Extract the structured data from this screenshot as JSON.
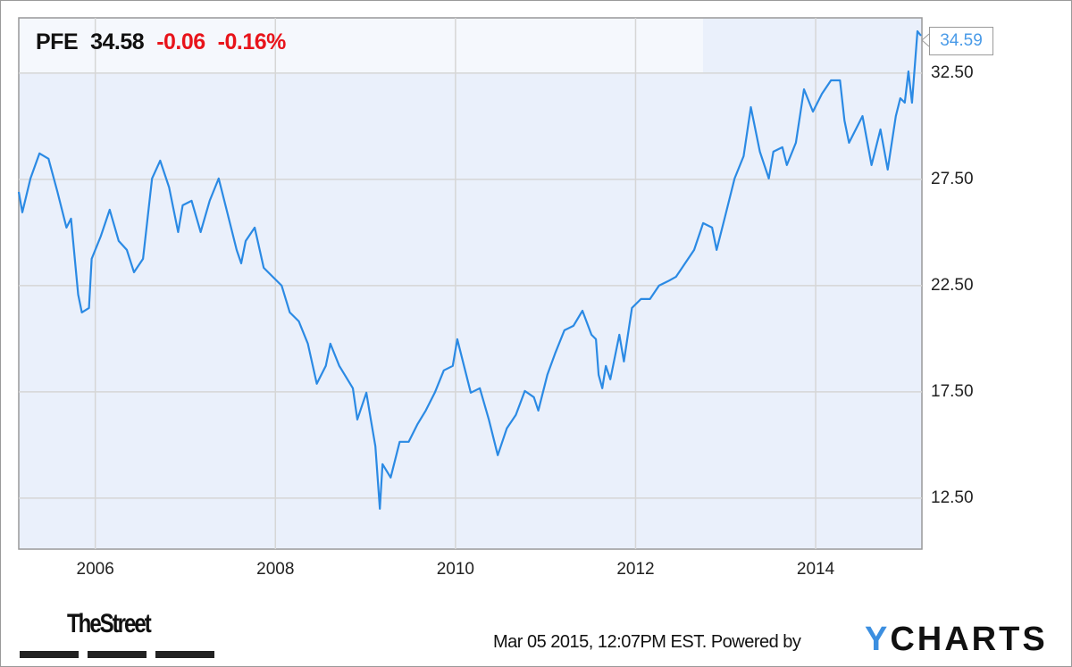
{
  "header": {
    "symbol": "PFE",
    "price": "34.58",
    "change": "-0.06",
    "change_pct": "-0.16%"
  },
  "last_value_label": "34.59",
  "footer": {
    "timestamp": "Mar 05 2015, 12:07PM EST.",
    "powered_by": "Powered by",
    "brand": "YCHARTS",
    "brand_first": "Y",
    "brand_rest": "CHARTS",
    "publisher_logo": "TheStreet"
  },
  "colors": {
    "line": "#2b8ae4",
    "plot_bg": "#eaf0fb",
    "negative": "#e8141b"
  },
  "chart_data": {
    "type": "line",
    "title": "",
    "xlabel": "",
    "ylabel": "",
    "xlim": [
      2005.15,
      2015.18
    ],
    "ylim": [
      10.1,
      35.1
    ],
    "y_axis_side": "right",
    "grid": true,
    "x_ticks": [
      {
        "value": 2006,
        "label": "2006"
      },
      {
        "value": 2008,
        "label": "2008"
      },
      {
        "value": 2010,
        "label": "2010"
      },
      {
        "value": 2012,
        "label": "2012"
      },
      {
        "value": 2014,
        "label": "2014"
      }
    ],
    "y_ticks": [
      {
        "value": 12.5,
        "label": "12.50"
      },
      {
        "value": 17.5,
        "label": "17.50"
      },
      {
        "value": 22.5,
        "label": "22.50"
      },
      {
        "value": 27.5,
        "label": "27.50"
      },
      {
        "value": 32.5,
        "label": "32.50"
      }
    ],
    "series": [
      {
        "x": [
          2005.15,
          2005.19,
          2005.28,
          2005.38,
          2005.48,
          2005.58,
          2005.68,
          2005.73,
          2005.81,
          2005.85,
          2005.93,
          2005.96,
          2006.06,
          2006.16,
          2006.26,
          2006.35,
          2006.43,
          2006.53,
          2006.63,
          2006.72,
          2006.82,
          2006.92,
          2006.97,
          2007.07,
          2007.17,
          2007.27,
          2007.37,
          2007.47,
          2007.57,
          2007.62,
          2007.67,
          2007.77,
          2007.87,
          2007.97,
          2008.07,
          2008.16,
          2008.26,
          2008.36,
          2008.46,
          2008.56,
          2008.61,
          2008.71,
          2008.86,
          2008.91,
          2009.01,
          2009.06,
          2009.11,
          2009.16,
          2009.19,
          2009.28,
          2009.38,
          2009.48,
          2009.58,
          2009.67,
          2009.77,
          2009.87,
          2009.97,
          2010.02,
          2010.07,
          2010.17,
          2010.27,
          2010.37,
          2010.47,
          2010.57,
          2010.67,
          2010.77,
          2010.87,
          2010.92,
          2011.02,
          2011.11,
          2011.21,
          2011.31,
          2011.41,
          2011.51,
          2011.56,
          2011.59,
          2011.63,
          2011.67,
          2011.72,
          2011.82,
          2011.87,
          2011.96,
          2012.06,
          2012.16,
          2012.26,
          2012.36,
          2012.45,
          2012.55,
          2012.65,
          2012.75,
          2012.85,
          2012.9,
          2013.0,
          2013.1,
          2013.2,
          2013.28,
          2013.38,
          2013.48,
          2013.53,
          2013.63,
          2013.68,
          2013.78,
          2013.87,
          2013.97,
          2014.07,
          2014.17,
          2014.27,
          2014.32,
          2014.37,
          2014.52,
          2014.62,
          2014.72,
          2014.8,
          2014.89,
          2014.94,
          2014.99,
          2015.03,
          2015.07,
          2015.13,
          2015.17
        ],
        "y": [
          26.91,
          25.95,
          27.54,
          28.72,
          28.47,
          26.91,
          25.23,
          25.65,
          22.08,
          21.24,
          21.45,
          23.76,
          24.81,
          26.07,
          24.6,
          24.18,
          23.13,
          23.76,
          27.54,
          28.38,
          27.12,
          25.02,
          26.28,
          26.49,
          25.02,
          26.49,
          27.54,
          25.86,
          24.18,
          23.55,
          24.6,
          25.23,
          23.34,
          22.92,
          22.5,
          21.24,
          20.82,
          19.77,
          17.88,
          18.72,
          19.77,
          18.72,
          17.67,
          16.2,
          17.46,
          16.2,
          14.94,
          12.0,
          14.1,
          13.47,
          15.15,
          15.15,
          15.99,
          16.62,
          17.46,
          18.51,
          18.72,
          19.98,
          19.14,
          17.46,
          17.67,
          16.2,
          14.52,
          15.78,
          16.41,
          17.54,
          17.25,
          16.62,
          18.3,
          19.35,
          20.4,
          20.61,
          21.32,
          20.19,
          19.98,
          18.3,
          17.67,
          18.72,
          18.09,
          20.19,
          18.93,
          21.45,
          21.87,
          21.87,
          22.5,
          22.71,
          22.92,
          23.55,
          24.18,
          25.44,
          25.23,
          24.18,
          25.86,
          27.54,
          28.59,
          30.9,
          28.8,
          27.54,
          28.8,
          29.01,
          28.17,
          29.22,
          31.74,
          30.69,
          31.53,
          32.16,
          32.16,
          30.27,
          29.22,
          30.48,
          28.17,
          29.85,
          27.96,
          30.48,
          31.32,
          31.11,
          32.58,
          31.11,
          34.47,
          34.26
        ]
      }
    ]
  }
}
